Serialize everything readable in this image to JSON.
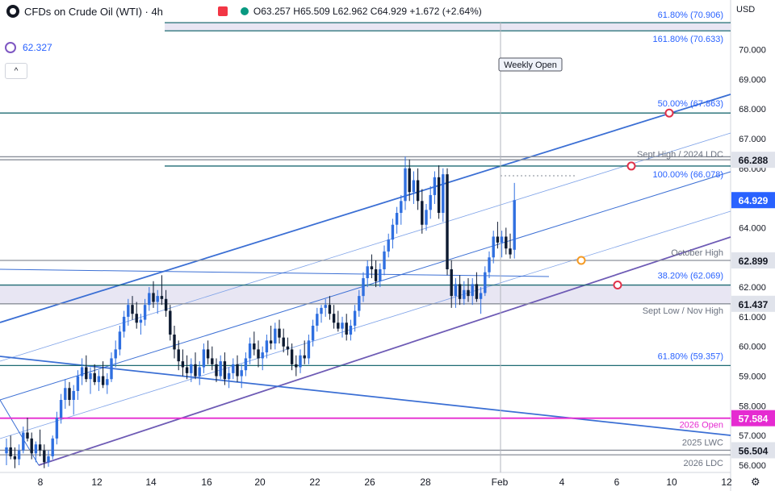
{
  "header": {
    "title": "CFDs on Crude Oil (WTI) · 4h",
    "ohlc": "O63.257 H65.509 L62.962 C64.929 +1.672 (+2.64%)"
  },
  "indicator": {
    "value": "62.327",
    "collapse_glyph": "^"
  },
  "currency": "USD",
  "settings_icon": "gear-icon",
  "colors": {
    "up": "#2f6fe0",
    "down": "#0d1a30",
    "channel": "#3b6fd4",
    "channel_light": "#7ea2e8",
    "lower_channel": "#6e5bb5",
    "fib_line": "#1f6b73",
    "level_line": "#8a8f99",
    "zone_fill": "#e8e6f3",
    "open_line": "#e52bd1",
    "marker_red": "#e0324a",
    "marker_orange": "#f59a23"
  },
  "chart_data": {
    "type": "candlestick",
    "timeframe": "4h",
    "ylim": [
      55.9,
      71.3
    ],
    "y_ticks": [
      56,
      57,
      58,
      59,
      60,
      61,
      62,
      63,
      64,
      65,
      66,
      67,
      68,
      69,
      70
    ],
    "x_ticks": [
      "8",
      "12",
      "14",
      "16",
      "20",
      "22",
      "26",
      "28",
      "Feb",
      "4",
      "6",
      "10",
      "12"
    ],
    "price_labels": [
      {
        "value": "66.288",
        "style": "grey"
      },
      {
        "value": "64.929",
        "style": "blue"
      },
      {
        "value": "62.899",
        "style": "grey"
      },
      {
        "value": "61.437",
        "style": "grey"
      },
      {
        "value": "57.584",
        "style": "magenta"
      },
      {
        "value": "56.504",
        "style": "grey"
      }
    ],
    "levels": [
      {
        "price": 70.906,
        "label": "61.80% (70.906)",
        "kind": "fib"
      },
      {
        "price": 70.633,
        "label": "161.80% (70.633)",
        "kind": "fib"
      },
      {
        "price": 67.863,
        "label": "50.00% (67.863)",
        "kind": "fib"
      },
      {
        "price": 66.288,
        "label": "Sept High / 2024 LDC",
        "kind": "level"
      },
      {
        "price": 66.078,
        "label": "100.00% (66.078)",
        "kind": "fib"
      },
      {
        "price": 62.899,
        "label": "October High",
        "kind": "level"
      },
      {
        "price": 62.069,
        "label": "38.20% (62.069)",
        "kind": "fib"
      },
      {
        "price": 61.437,
        "label": "Sept Low / Nov High",
        "kind": "level"
      },
      {
        "price": 59.357,
        "label": "61.80% (59.357)",
        "kind": "fib"
      },
      {
        "price": 57.584,
        "label": "2026 Open",
        "kind": "open"
      },
      {
        "price": 56.504,
        "label": "2025 LWC",
        "kind": "level"
      },
      {
        "price": 56.35,
        "label": "2026 LDC",
        "kind": "level"
      }
    ],
    "annotations": [
      "Weekly Open"
    ],
    "candles": [
      {
        "o": 56.4,
        "h": 56.9,
        "l": 56.0,
        "c": 56.6
      },
      {
        "o": 56.6,
        "h": 57.0,
        "l": 56.2,
        "c": 56.3
      },
      {
        "o": 56.3,
        "h": 56.6,
        "l": 55.9,
        "c": 56.2
      },
      {
        "o": 56.2,
        "h": 56.7,
        "l": 56.0,
        "c": 56.5
      },
      {
        "o": 56.5,
        "h": 57.3,
        "l": 56.4,
        "c": 57.1
      },
      {
        "o": 57.1,
        "h": 57.6,
        "l": 56.8,
        "c": 56.9
      },
      {
        "o": 56.9,
        "h": 57.1,
        "l": 56.2,
        "c": 56.4
      },
      {
        "o": 56.4,
        "h": 56.8,
        "l": 56.1,
        "c": 56.7
      },
      {
        "o": 56.7,
        "h": 57.2,
        "l": 56.3,
        "c": 56.5
      },
      {
        "o": 56.5,
        "h": 56.7,
        "l": 55.9,
        "c": 56.1
      },
      {
        "o": 56.1,
        "h": 56.5,
        "l": 55.95,
        "c": 56.3
      },
      {
        "o": 56.3,
        "h": 57.0,
        "l": 56.2,
        "c": 56.9
      },
      {
        "o": 56.9,
        "h": 57.8,
        "l": 56.7,
        "c": 57.6
      },
      {
        "o": 57.6,
        "h": 58.4,
        "l": 57.4,
        "c": 58.2
      },
      {
        "o": 58.2,
        "h": 58.9,
        "l": 57.9,
        "c": 58.6
      },
      {
        "o": 58.6,
        "h": 58.8,
        "l": 58.0,
        "c": 58.2
      },
      {
        "o": 58.2,
        "h": 58.7,
        "l": 57.7,
        "c": 58.5
      },
      {
        "o": 58.5,
        "h": 59.2,
        "l": 58.2,
        "c": 59.0
      },
      {
        "o": 59.0,
        "h": 59.6,
        "l": 58.7,
        "c": 59.3
      },
      {
        "o": 59.3,
        "h": 59.7,
        "l": 58.8,
        "c": 58.9
      },
      {
        "o": 58.9,
        "h": 59.3,
        "l": 58.4,
        "c": 59.1
      },
      {
        "o": 59.1,
        "h": 59.4,
        "l": 58.7,
        "c": 58.8
      },
      {
        "o": 58.8,
        "h": 59.2,
        "l": 58.5,
        "c": 59.0
      },
      {
        "o": 59.0,
        "h": 59.5,
        "l": 58.6,
        "c": 58.7
      },
      {
        "o": 58.7,
        "h": 59.1,
        "l": 58.4,
        "c": 58.9
      },
      {
        "o": 58.9,
        "h": 59.8,
        "l": 58.8,
        "c": 59.6
      },
      {
        "o": 59.6,
        "h": 60.2,
        "l": 59.3,
        "c": 59.9
      },
      {
        "o": 59.9,
        "h": 60.7,
        "l": 59.7,
        "c": 60.5
      },
      {
        "o": 60.5,
        "h": 61.2,
        "l": 60.3,
        "c": 61.0
      },
      {
        "o": 61.0,
        "h": 61.6,
        "l": 60.7,
        "c": 61.4
      },
      {
        "o": 61.4,
        "h": 61.7,
        "l": 60.9,
        "c": 61.1
      },
      {
        "o": 61.1,
        "h": 61.5,
        "l": 60.6,
        "c": 60.8
      },
      {
        "o": 60.8,
        "h": 61.1,
        "l": 60.4,
        "c": 60.9
      },
      {
        "o": 60.9,
        "h": 61.6,
        "l": 60.7,
        "c": 61.4
      },
      {
        "o": 61.4,
        "h": 62.0,
        "l": 61.2,
        "c": 61.8
      },
      {
        "o": 61.8,
        "h": 62.2,
        "l": 61.3,
        "c": 61.5
      },
      {
        "o": 61.5,
        "h": 61.9,
        "l": 61.1,
        "c": 61.7
      },
      {
        "o": 61.7,
        "h": 62.4,
        "l": 61.4,
        "c": 61.6
      },
      {
        "o": 61.6,
        "h": 61.9,
        "l": 61.0,
        "c": 61.2
      },
      {
        "o": 61.2,
        "h": 61.4,
        "l": 60.2,
        "c": 60.4
      },
      {
        "o": 60.4,
        "h": 60.7,
        "l": 59.6,
        "c": 59.9
      },
      {
        "o": 59.9,
        "h": 60.2,
        "l": 59.2,
        "c": 59.5
      },
      {
        "o": 59.5,
        "h": 59.9,
        "l": 59.0,
        "c": 59.3
      },
      {
        "o": 59.3,
        "h": 59.7,
        "l": 58.9,
        "c": 59.1
      },
      {
        "o": 59.1,
        "h": 59.6,
        "l": 58.8,
        "c": 59.4
      },
      {
        "o": 59.4,
        "h": 59.8,
        "l": 58.9,
        "c": 59.0
      },
      {
        "o": 59.0,
        "h": 59.5,
        "l": 58.7,
        "c": 59.3
      },
      {
        "o": 59.3,
        "h": 60.1,
        "l": 59.1,
        "c": 59.9
      },
      {
        "o": 59.9,
        "h": 60.2,
        "l": 59.4,
        "c": 59.6
      },
      {
        "o": 59.6,
        "h": 60.0,
        "l": 59.2,
        "c": 59.4
      },
      {
        "o": 59.4,
        "h": 59.6,
        "l": 58.8,
        "c": 59.0
      },
      {
        "o": 59.0,
        "h": 59.7,
        "l": 58.9,
        "c": 59.5
      },
      {
        "o": 59.5,
        "h": 59.8,
        "l": 58.7,
        "c": 58.9
      },
      {
        "o": 58.9,
        "h": 59.3,
        "l": 58.6,
        "c": 59.1
      },
      {
        "o": 59.1,
        "h": 59.6,
        "l": 58.9,
        "c": 59.4
      },
      {
        "o": 59.4,
        "h": 59.7,
        "l": 58.8,
        "c": 59.0
      },
      {
        "o": 59.0,
        "h": 59.4,
        "l": 58.6,
        "c": 59.2
      },
      {
        "o": 59.2,
        "h": 59.8,
        "l": 59.0,
        "c": 59.6
      },
      {
        "o": 59.6,
        "h": 60.3,
        "l": 59.4,
        "c": 60.1
      },
      {
        "o": 60.1,
        "h": 60.5,
        "l": 59.7,
        "c": 59.9
      },
      {
        "o": 59.9,
        "h": 60.2,
        "l": 59.3,
        "c": 59.6
      },
      {
        "o": 59.6,
        "h": 60.0,
        "l": 59.2,
        "c": 59.8
      },
      {
        "o": 59.8,
        "h": 60.4,
        "l": 59.6,
        "c": 60.2
      },
      {
        "o": 60.2,
        "h": 60.7,
        "l": 59.9,
        "c": 60.1
      },
      {
        "o": 60.1,
        "h": 60.8,
        "l": 59.9,
        "c": 60.6
      },
      {
        "o": 60.6,
        "h": 60.9,
        "l": 60.1,
        "c": 60.3
      },
      {
        "o": 60.3,
        "h": 60.6,
        "l": 59.8,
        "c": 60.0
      },
      {
        "o": 60.0,
        "h": 60.3,
        "l": 59.7,
        "c": 59.9
      },
      {
        "o": 59.9,
        "h": 60.1,
        "l": 59.2,
        "c": 59.4
      },
      {
        "o": 59.4,
        "h": 59.7,
        "l": 59.0,
        "c": 59.3
      },
      {
        "o": 59.3,
        "h": 59.9,
        "l": 59.1,
        "c": 59.7
      },
      {
        "o": 59.7,
        "h": 60.2,
        "l": 59.4,
        "c": 59.6
      },
      {
        "o": 59.6,
        "h": 60.4,
        "l": 59.4,
        "c": 60.2
      },
      {
        "o": 60.2,
        "h": 60.9,
        "l": 60.0,
        "c": 60.7
      },
      {
        "o": 60.7,
        "h": 61.3,
        "l": 60.5,
        "c": 61.1
      },
      {
        "o": 61.1,
        "h": 61.4,
        "l": 60.8,
        "c": 61.3
      },
      {
        "o": 61.3,
        "h": 61.6,
        "l": 61.0,
        "c": 61.4
      },
      {
        "o": 61.4,
        "h": 61.7,
        "l": 60.9,
        "c": 61.1
      },
      {
        "o": 61.1,
        "h": 61.4,
        "l": 60.6,
        "c": 60.8
      },
      {
        "o": 60.8,
        "h": 61.2,
        "l": 60.5,
        "c": 60.6
      },
      {
        "o": 60.6,
        "h": 61.0,
        "l": 60.3,
        "c": 60.8
      },
      {
        "o": 60.8,
        "h": 61.1,
        "l": 60.2,
        "c": 60.4
      },
      {
        "o": 60.4,
        "h": 60.9,
        "l": 60.2,
        "c": 60.7
      },
      {
        "o": 60.7,
        "h": 61.4,
        "l": 60.5,
        "c": 61.2
      },
      {
        "o": 61.2,
        "h": 61.9,
        "l": 61.0,
        "c": 61.7
      },
      {
        "o": 61.7,
        "h": 62.5,
        "l": 61.5,
        "c": 62.3
      },
      {
        "o": 62.3,
        "h": 62.9,
        "l": 62.0,
        "c": 62.7
      },
      {
        "o": 62.7,
        "h": 63.1,
        "l": 62.3,
        "c": 62.6
      },
      {
        "o": 62.6,
        "h": 62.9,
        "l": 62.0,
        "c": 62.2
      },
      {
        "o": 62.2,
        "h": 62.8,
        "l": 62.0,
        "c": 62.6
      },
      {
        "o": 62.6,
        "h": 63.4,
        "l": 62.4,
        "c": 63.2
      },
      {
        "o": 63.2,
        "h": 63.8,
        "l": 63.0,
        "c": 63.6
      },
      {
        "o": 63.6,
        "h": 64.3,
        "l": 63.3,
        "c": 64.1
      },
      {
        "o": 64.1,
        "h": 64.7,
        "l": 63.8,
        "c": 64.5
      },
      {
        "o": 64.5,
        "h": 65.1,
        "l": 64.1,
        "c": 64.9
      },
      {
        "o": 64.9,
        "h": 66.4,
        "l": 64.6,
        "c": 66.0
      },
      {
        "o": 66.0,
        "h": 66.3,
        "l": 64.9,
        "c": 65.2
      },
      {
        "o": 65.2,
        "h": 65.9,
        "l": 64.8,
        "c": 65.6
      },
      {
        "o": 65.6,
        "h": 66.0,
        "l": 64.6,
        "c": 64.9
      },
      {
        "o": 64.9,
        "h": 65.3,
        "l": 63.8,
        "c": 64.1
      },
      {
        "o": 64.1,
        "h": 64.8,
        "l": 63.9,
        "c": 64.6
      },
      {
        "o": 64.6,
        "h": 65.4,
        "l": 64.3,
        "c": 65.1
      },
      {
        "o": 65.1,
        "h": 65.9,
        "l": 64.8,
        "c": 65.7
      },
      {
        "o": 65.7,
        "h": 66.1,
        "l": 64.3,
        "c": 64.5
      },
      {
        "o": 64.5,
        "h": 66.0,
        "l": 64.2,
        "c": 65.8
      },
      {
        "o": 65.8,
        "h": 66.0,
        "l": 62.4,
        "c": 62.6
      },
      {
        "o": 62.6,
        "h": 62.9,
        "l": 61.3,
        "c": 61.7
      },
      {
        "o": 61.7,
        "h": 62.3,
        "l": 61.3,
        "c": 62.1
      },
      {
        "o": 62.1,
        "h": 62.4,
        "l": 61.4,
        "c": 61.6
      },
      {
        "o": 61.6,
        "h": 62.2,
        "l": 61.4,
        "c": 61.9
      },
      {
        "o": 61.9,
        "h": 62.3,
        "l": 61.5,
        "c": 61.7
      },
      {
        "o": 61.7,
        "h": 62.3,
        "l": 61.4,
        "c": 62.1
      },
      {
        "o": 62.1,
        "h": 62.5,
        "l": 61.5,
        "c": 61.6
      },
      {
        "o": 61.6,
        "h": 62.0,
        "l": 61.1,
        "c": 61.8
      },
      {
        "o": 61.8,
        "h": 62.7,
        "l": 61.7,
        "c": 62.5
      },
      {
        "o": 62.5,
        "h": 63.2,
        "l": 62.3,
        "c": 63.0
      },
      {
        "o": 63.0,
        "h": 63.9,
        "l": 62.8,
        "c": 63.7
      },
      {
        "o": 63.7,
        "h": 64.2,
        "l": 63.3,
        "c": 63.5
      },
      {
        "o": 63.5,
        "h": 63.9,
        "l": 63.0,
        "c": 63.7
      },
      {
        "o": 63.7,
        "h": 64.0,
        "l": 63.1,
        "c": 63.3
      },
      {
        "o": 63.3,
        "h": 63.8,
        "l": 62.96,
        "c": 63.1
      },
      {
        "o": 63.257,
        "h": 65.509,
        "l": 62.962,
        "c": 64.929
      }
    ]
  }
}
